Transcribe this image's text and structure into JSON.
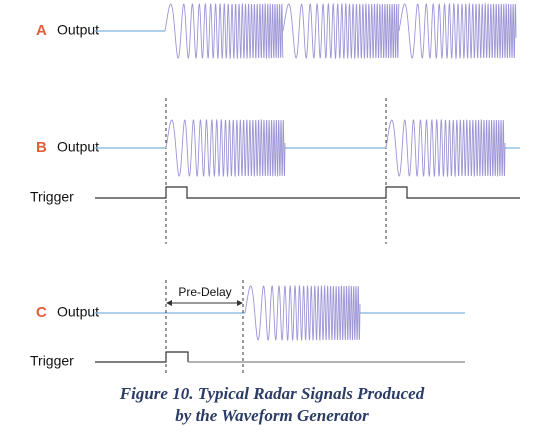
{
  "panels": [
    {
      "letter": "A",
      "output_label": "Output"
    },
    {
      "letter": "B",
      "output_label": "Output",
      "trigger_label": "Trigger"
    },
    {
      "letter": "C",
      "output_label": "Output",
      "trigger_label": "Trigger",
      "annotation": "Pre-Delay"
    }
  ],
  "caption": [
    "Figure 10. Typical Radar Signals Produced",
    "by the Waveform Generator"
  ]
}
